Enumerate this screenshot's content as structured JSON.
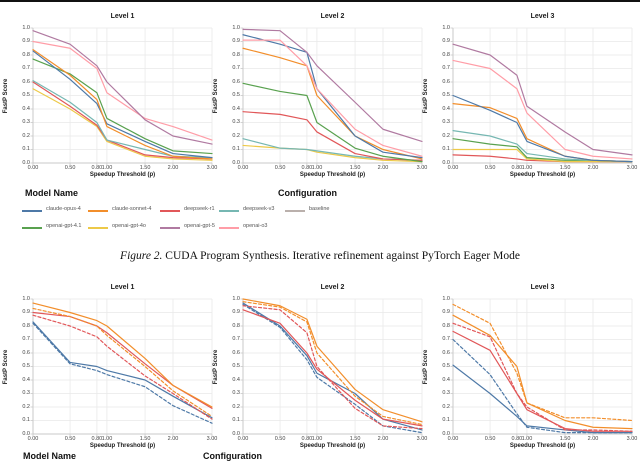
{
  "caption": {
    "label": "Figure 2.",
    "text": " CUDA Program Synthesis. Iterative refinement against PyTorch Eager Mode"
  },
  "colors": {
    "blue": "#4e79a7",
    "orange": "#f28e2b",
    "red": "#e15759",
    "teal": "#76b7b2",
    "green": "#59a14f",
    "yellow": "#edc948",
    "purple": "#b07aa1",
    "pink": "#ff9da7",
    "gray_baseline": "#bab0ac",
    "grid": "#e9e9e9",
    "spine": "#c9c9c9"
  },
  "axis": {
    "xlabel": "Speedup Threshold (p)",
    "ylabel": "FastP Score",
    "x_tick_labels": [
      "0.00",
      "0.50",
      "0.80",
      "1.00",
      "1.50",
      "2.00",
      "3.00"
    ],
    "y_tick_labels": [
      "0.0",
      "0.1",
      "0.2",
      "0.3",
      "0.4",
      "0.5",
      "0.6",
      "0.7",
      "0.8",
      "0.9",
      "1.0"
    ]
  },
  "legend_top": {
    "model_name_title": "Model Name",
    "configuration_title": "Configuration",
    "rows": [
      [
        {
          "label": "claude-opus-4",
          "color": "#4e79a7"
        },
        {
          "label": "claude-sonnet-4",
          "color": "#f28e2b"
        },
        {
          "label": "deepseek-r1",
          "color": "#e15759"
        },
        {
          "label": "deepseek-v3",
          "color": "#76b7b2"
        },
        {
          "label": "baseline",
          "color": "#bab0ac"
        }
      ],
      [
        {
          "label": "openai-gpt-4.1",
          "color": "#59a14f"
        },
        {
          "label": "openai-gpt-4o",
          "color": "#edc948"
        },
        {
          "label": "openai-gpt-5",
          "color": "#b07aa1"
        },
        {
          "label": "openai-o3",
          "color": "#ff9da7"
        }
      ]
    ]
  },
  "legend_bottom": {
    "model_name_title": "Model Name",
    "configuration_title": "Configuration"
  },
  "chart_data": [
    {
      "type": "line",
      "title": "Level 1",
      "xlabel": "Speedup Threshold (p)",
      "ylabel": "FastP Score",
      "x": [
        0.0,
        0.5,
        0.8,
        1.0,
        1.5,
        2.0,
        3.0
      ],
      "ylim": [
        0.0,
        1.0
      ],
      "grid": true,
      "series": [
        {
          "name": "openai-gpt-4o",
          "color": "#edc948",
          "dash": false,
          "values": [
            0.55,
            0.4,
            0.27,
            0.16,
            0.05,
            0.03,
            0.02
          ]
        },
        {
          "name": "deepseek-r1",
          "color": "#e15759",
          "dash": false,
          "values": [
            0.6,
            0.42,
            0.28,
            0.17,
            0.06,
            0.04,
            0.03
          ]
        },
        {
          "name": "deepseek-v3",
          "color": "#76b7b2",
          "dash": false,
          "values": [
            0.61,
            0.45,
            0.3,
            0.17,
            0.1,
            0.05,
            0.04
          ]
        },
        {
          "name": "openai-gpt-4.1",
          "color": "#59a14f",
          "dash": false,
          "values": [
            0.77,
            0.66,
            0.52,
            0.33,
            0.18,
            0.09,
            0.07
          ]
        },
        {
          "name": "claude-opus-4",
          "color": "#4e79a7",
          "dash": false,
          "values": [
            0.83,
            0.62,
            0.44,
            0.29,
            0.16,
            0.07,
            0.04
          ]
        },
        {
          "name": "claude-sonnet-4",
          "color": "#f28e2b",
          "dash": false,
          "values": [
            0.84,
            0.65,
            0.47,
            0.27,
            0.13,
            0.05,
            0.03
          ]
        },
        {
          "name": "openai-o3",
          "color": "#ff9da7",
          "dash": false,
          "values": [
            0.9,
            0.85,
            0.7,
            0.52,
            0.33,
            0.27,
            0.17
          ]
        },
        {
          "name": "openai-gpt-5",
          "color": "#b07aa1",
          "dash": false,
          "values": [
            0.98,
            0.88,
            0.72,
            0.6,
            0.32,
            0.2,
            0.14
          ]
        }
      ]
    },
    {
      "type": "line",
      "title": "Level 2",
      "xlabel": "Speedup Threshold (p)",
      "ylabel": "FastP Score",
      "x": [
        0.0,
        0.5,
        0.8,
        1.0,
        1.5,
        2.0,
        3.0
      ],
      "ylim": [
        0.0,
        1.0
      ],
      "grid": true,
      "series": [
        {
          "name": "openai-gpt-4o",
          "color": "#edc948",
          "dash": false,
          "values": [
            0.13,
            0.11,
            0.1,
            0.08,
            0.04,
            0.02,
            0.01
          ]
        },
        {
          "name": "deepseek-v3",
          "color": "#76b7b2",
          "dash": false,
          "values": [
            0.18,
            0.11,
            0.1,
            0.09,
            0.05,
            0.03,
            0.02
          ]
        },
        {
          "name": "deepseek-r1",
          "color": "#e15759",
          "dash": false,
          "values": [
            0.38,
            0.36,
            0.32,
            0.23,
            0.07,
            0.03,
            0.02
          ]
        },
        {
          "name": "openai-gpt-4.1",
          "color": "#59a14f",
          "dash": false,
          "values": [
            0.59,
            0.53,
            0.5,
            0.3,
            0.11,
            0.05,
            0.01
          ]
        },
        {
          "name": "claude-sonnet-4",
          "color": "#f28e2b",
          "dash": false,
          "values": [
            0.85,
            0.78,
            0.72,
            0.5,
            0.2,
            0.1,
            0.03
          ]
        },
        {
          "name": "claude-opus-4",
          "color": "#4e79a7",
          "dash": false,
          "values": [
            0.95,
            0.88,
            0.82,
            0.55,
            0.2,
            0.08,
            0.04
          ]
        },
        {
          "name": "openai-o3",
          "color": "#ff9da7",
          "dash": false,
          "values": [
            0.91,
            0.91,
            0.72,
            0.55,
            0.25,
            0.13,
            0.05
          ]
        },
        {
          "name": "openai-gpt-5",
          "color": "#b07aa1",
          "dash": false,
          "values": [
            0.99,
            0.98,
            0.82,
            0.72,
            0.45,
            0.25,
            0.16
          ]
        }
      ]
    },
    {
      "type": "line",
      "title": "Level 3",
      "xlabel": "Speedup Threshold (p)",
      "ylabel": "FastP Score",
      "x": [
        0.0,
        0.5,
        0.8,
        1.0,
        1.5,
        2.0,
        3.0
      ],
      "ylim": [
        0.0,
        1.0
      ],
      "grid": true,
      "series": [
        {
          "name": "deepseek-r1",
          "color": "#e15759",
          "dash": false,
          "values": [
            0.06,
            0.05,
            0.03,
            0.02,
            0.01,
            0.01,
            0.01
          ]
        },
        {
          "name": "openai-gpt-4o",
          "color": "#edc948",
          "dash": false,
          "values": [
            0.1,
            0.1,
            0.1,
            0.03,
            0.01,
            0.01,
            0.01
          ]
        },
        {
          "name": "openai-gpt-4.1",
          "color": "#59a14f",
          "dash": false,
          "values": [
            0.18,
            0.14,
            0.12,
            0.04,
            0.02,
            0.02,
            0.01
          ]
        },
        {
          "name": "deepseek-v3",
          "color": "#76b7b2",
          "dash": false,
          "values": [
            0.24,
            0.2,
            0.14,
            0.07,
            0.03,
            0.02,
            0.01
          ]
        },
        {
          "name": "claude-sonnet-4",
          "color": "#f28e2b",
          "dash": false,
          "values": [
            0.44,
            0.41,
            0.33,
            0.18,
            0.05,
            0.02,
            0.01
          ]
        },
        {
          "name": "claude-opus-4",
          "color": "#4e79a7",
          "dash": false,
          "values": [
            0.5,
            0.39,
            0.3,
            0.16,
            0.05,
            0.02,
            0.01
          ]
        },
        {
          "name": "openai-o3",
          "color": "#ff9da7",
          "dash": false,
          "values": [
            0.76,
            0.7,
            0.55,
            0.37,
            0.1,
            0.05,
            0.03
          ]
        },
        {
          "name": "openai-gpt-5",
          "color": "#b07aa1",
          "dash": false,
          "values": [
            0.88,
            0.8,
            0.65,
            0.42,
            0.23,
            0.1,
            0.06
          ]
        }
      ]
    },
    {
      "type": "line",
      "title": "Level 1",
      "xlabel": "Speedup Threshold (p)",
      "ylabel": "FastP Score",
      "x": [
        0.0,
        0.5,
        0.8,
        1.0,
        1.5,
        2.0,
        3.0
      ],
      "ylim": [
        0.0,
        1.0
      ],
      "grid": true,
      "series": [
        {
          "name": "claude-opus-4",
          "color": "#4e79a7",
          "dash": true,
          "values": [
            0.82,
            0.52,
            0.47,
            0.44,
            0.35,
            0.21,
            0.08
          ]
        },
        {
          "name": "claude-opus-4",
          "color": "#4e79a7",
          "dash": false,
          "values": [
            0.83,
            0.53,
            0.5,
            0.47,
            0.4,
            0.28,
            0.12
          ]
        },
        {
          "name": "deepseek-r1",
          "color": "#e15759",
          "dash": true,
          "values": [
            0.88,
            0.8,
            0.72,
            0.65,
            0.43,
            0.3,
            0.11
          ]
        },
        {
          "name": "deepseek-r1",
          "color": "#e15759",
          "dash": false,
          "values": [
            0.9,
            0.87,
            0.8,
            0.75,
            0.52,
            0.36,
            0.19
          ]
        },
        {
          "name": "claude-sonnet-4",
          "color": "#f28e2b",
          "dash": true,
          "values": [
            0.93,
            0.87,
            0.8,
            0.73,
            0.5,
            0.32,
            0.13
          ]
        },
        {
          "name": "claude-sonnet-4",
          "color": "#f28e2b",
          "dash": false,
          "values": [
            0.97,
            0.9,
            0.84,
            0.8,
            0.56,
            0.36,
            0.2
          ]
        }
      ]
    },
    {
      "type": "line",
      "title": "Level 2",
      "xlabel": "Speedup Threshold (p)",
      "ylabel": "FastP Score",
      "x": [
        0.0,
        0.5,
        0.8,
        1.0,
        1.5,
        2.0,
        3.0
      ],
      "ylim": [
        0.0,
        1.0
      ],
      "grid": true,
      "series": [
        {
          "name": "claude-opus-4",
          "color": "#4e79a7",
          "dash": true,
          "values": [
            0.96,
            0.79,
            0.55,
            0.42,
            0.22,
            0.06,
            0.01
          ]
        },
        {
          "name": "claude-opus-4",
          "color": "#4e79a7",
          "dash": false,
          "values": [
            0.97,
            0.8,
            0.58,
            0.45,
            0.3,
            0.11,
            0.03
          ]
        },
        {
          "name": "deepseek-r1",
          "color": "#e15759",
          "dash": true,
          "values": [
            0.95,
            0.92,
            0.75,
            0.5,
            0.19,
            0.06,
            0.04
          ]
        },
        {
          "name": "deepseek-r1",
          "color": "#e15759",
          "dash": false,
          "values": [
            0.92,
            0.82,
            0.6,
            0.48,
            0.25,
            0.11,
            0.06
          ]
        },
        {
          "name": "claude-sonnet-4",
          "color": "#f28e2b",
          "dash": true,
          "values": [
            0.98,
            0.94,
            0.83,
            0.6,
            0.28,
            0.13,
            0.07
          ]
        },
        {
          "name": "claude-sonnet-4",
          "color": "#f28e2b",
          "dash": false,
          "values": [
            1.0,
            0.95,
            0.85,
            0.65,
            0.33,
            0.18,
            0.09
          ]
        }
      ]
    },
    {
      "type": "line",
      "title": "Level 3",
      "xlabel": "Speedup Threshold (p)",
      "ylabel": "FastP Score",
      "x": [
        0.0,
        0.5,
        0.8,
        1.0,
        1.5,
        2.0,
        3.0
      ],
      "ylim": [
        0.0,
        1.0
      ],
      "grid": true,
      "series": [
        {
          "name": "claude-opus-4",
          "color": "#4e79a7",
          "dash": false,
          "values": [
            0.51,
            0.3,
            0.13,
            0.06,
            0.03,
            0.01,
            0.01
          ]
        },
        {
          "name": "claude-opus-4",
          "color": "#4e79a7",
          "dash": true,
          "values": [
            0.7,
            0.44,
            0.15,
            0.05,
            0.01,
            0.01,
            0.01
          ]
        },
        {
          "name": "deepseek-r1",
          "color": "#e15759",
          "dash": false,
          "values": [
            0.76,
            0.62,
            0.3,
            0.18,
            0.04,
            0.02,
            0.02
          ]
        },
        {
          "name": "deepseek-r1",
          "color": "#e15759",
          "dash": true,
          "values": [
            0.82,
            0.72,
            0.3,
            0.2,
            0.03,
            0.03,
            0.02
          ]
        },
        {
          "name": "claude-sonnet-4",
          "color": "#f28e2b",
          "dash": false,
          "values": [
            0.88,
            0.73,
            0.5,
            0.23,
            0.1,
            0.05,
            0.04
          ]
        },
        {
          "name": "claude-sonnet-4",
          "color": "#f28e2b",
          "dash": true,
          "values": [
            0.96,
            0.82,
            0.45,
            0.23,
            0.12,
            0.12,
            0.1
          ]
        }
      ]
    }
  ]
}
